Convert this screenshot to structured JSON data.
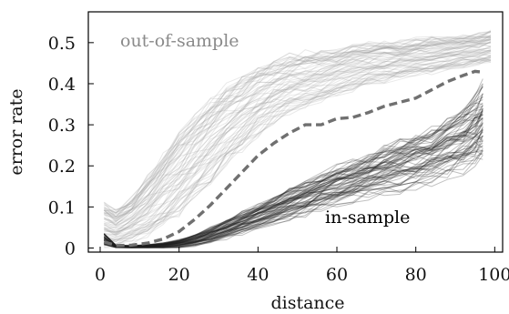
{
  "chart_data": {
    "type": "line",
    "xlabel": "distance",
    "ylabel": "error rate",
    "xlim": [
      -3,
      102
    ],
    "ylim": [
      -0.01,
      0.575
    ],
    "x_ticks": [
      0,
      20,
      40,
      60,
      80,
      100
    ],
    "y_ticks": [
      0,
      0.1,
      0.2,
      0.3,
      0.4,
      0.5
    ],
    "x_tick_labels": [
      "0",
      "20",
      "40",
      "60",
      "80",
      "100"
    ],
    "y_tick_labels": [
      "0",
      "0.1",
      "0.2",
      "0.3",
      "0.4",
      "0.5"
    ],
    "grid": false,
    "annotations": [
      {
        "text": "out-of-sample",
        "color": "#8a8a8a"
      },
      {
        "text": "in-sample",
        "color": "#000000"
      }
    ],
    "series": [
      {
        "style": "dashed",
        "color": "#707070",
        "x": [
          1,
          4,
          8,
          12,
          16,
          20,
          24,
          28,
          32,
          36,
          40,
          44,
          48,
          52,
          56,
          60,
          64,
          68,
          72,
          76,
          80,
          84,
          88,
          92,
          95,
          97
        ],
        "y": [
          0.015,
          0.006,
          0.007,
          0.012,
          0.022,
          0.04,
          0.07,
          0.105,
          0.145,
          0.185,
          0.225,
          0.255,
          0.28,
          0.3,
          0.3,
          0.315,
          0.318,
          0.33,
          0.345,
          0.355,
          0.365,
          0.385,
          0.405,
          0.42,
          0.43,
          0.428
        ]
      }
    ],
    "bands": [
      {
        "name_hint": "out-of-sample band",
        "color": "#9a9a9a",
        "x": [
          1,
          4,
          8,
          12,
          16,
          20,
          24,
          28,
          32,
          36,
          40,
          44,
          48,
          52,
          56,
          60,
          64,
          68,
          72,
          76,
          80,
          84,
          88,
          92,
          96,
          99
        ],
        "center": [
          0.06,
          0.05,
          0.07,
          0.1,
          0.14,
          0.18,
          0.22,
          0.26,
          0.3,
          0.33,
          0.36,
          0.38,
          0.4,
          0.41,
          0.42,
          0.43,
          0.44,
          0.45,
          0.455,
          0.46,
          0.465,
          0.47,
          0.475,
          0.48,
          0.485,
          0.49
        ],
        "spread": [
          0.05,
          0.04,
          0.05,
          0.07,
          0.08,
          0.09,
          0.09,
          0.09,
          0.085,
          0.08,
          0.075,
          0.07,
          0.065,
          0.06,
          0.055,
          0.05,
          0.05,
          0.045,
          0.045,
          0.04,
          0.04,
          0.04,
          0.035,
          0.035,
          0.035,
          0.035
        ],
        "count": 70
      },
      {
        "name_hint": "in-sample band",
        "color": "#222222",
        "x": [
          1,
          4,
          8,
          12,
          16,
          20,
          24,
          28,
          32,
          36,
          40,
          44,
          48,
          52,
          56,
          60,
          64,
          68,
          72,
          76,
          80,
          84,
          88,
          92,
          95,
          97
        ],
        "center": [
          0.02,
          0.004,
          0.003,
          0.004,
          0.006,
          0.01,
          0.018,
          0.03,
          0.045,
          0.06,
          0.075,
          0.09,
          0.105,
          0.12,
          0.135,
          0.15,
          0.16,
          0.175,
          0.19,
          0.2,
          0.21,
          0.22,
          0.24,
          0.26,
          0.28,
          0.3
        ],
        "spread": [
          0.015,
          0.003,
          0.003,
          0.004,
          0.006,
          0.01,
          0.014,
          0.018,
          0.022,
          0.026,
          0.03,
          0.033,
          0.036,
          0.04,
          0.042,
          0.045,
          0.048,
          0.05,
          0.055,
          0.06,
          0.06,
          0.065,
          0.07,
          0.075,
          0.08,
          0.09
        ],
        "count": 70
      }
    ]
  }
}
